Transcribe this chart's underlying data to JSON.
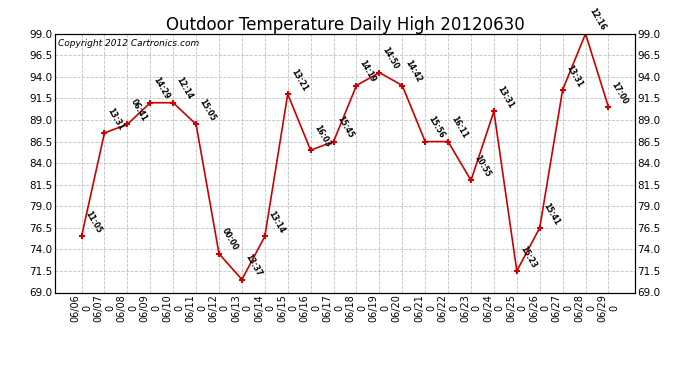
{
  "title": "Outdoor Temperature Daily High 20120630",
  "copyright": "Copyright 2012 Cartronics.com",
  "dates": [
    "06/06",
    "06/07",
    "06/08",
    "06/09",
    "06/10",
    "06/11",
    "06/12",
    "06/13",
    "06/14",
    "06/15",
    "06/16",
    "06/17",
    "06/18",
    "06/19",
    "06/20",
    "06/21",
    "06/22",
    "06/23",
    "06/24",
    "06/25",
    "06/26",
    "06/27",
    "06/28",
    "06/29"
  ],
  "values": [
    75.5,
    87.5,
    88.5,
    91.0,
    91.0,
    88.5,
    73.5,
    70.5,
    75.5,
    92.0,
    85.5,
    86.5,
    93.0,
    94.5,
    93.0,
    86.5,
    86.5,
    82.0,
    90.0,
    71.5,
    76.5,
    92.5,
    99.0,
    90.5
  ],
  "time_labels": [
    "11:05",
    "13:31",
    "06:41",
    "14:29",
    "12:14",
    "15:05",
    "00:00",
    "13:37",
    "13:14",
    "13:21",
    "16:03",
    "15:45",
    "14:19",
    "14:50",
    "14:42",
    "15:56",
    "16:11",
    "10:55",
    "13:31",
    "15:23",
    "15:41",
    "13:31",
    "12:16",
    "17:00"
  ],
  "line_color": "#cc0000",
  "marker_color": "#cc0000",
  "bg_color": "#ffffff",
  "plot_bg_color": "#ffffff",
  "grid_color": "#c0c0c0",
  "title_fontsize": 12,
  "label_fontsize": 7.0,
  "copyright_fontsize": 6.5,
  "ylim_min": 69.0,
  "ylim_max": 99.0,
  "yticks": [
    69.0,
    71.5,
    74.0,
    76.5,
    79.0,
    81.5,
    84.0,
    86.5,
    89.0,
    91.5,
    94.0,
    96.5,
    99.0
  ]
}
